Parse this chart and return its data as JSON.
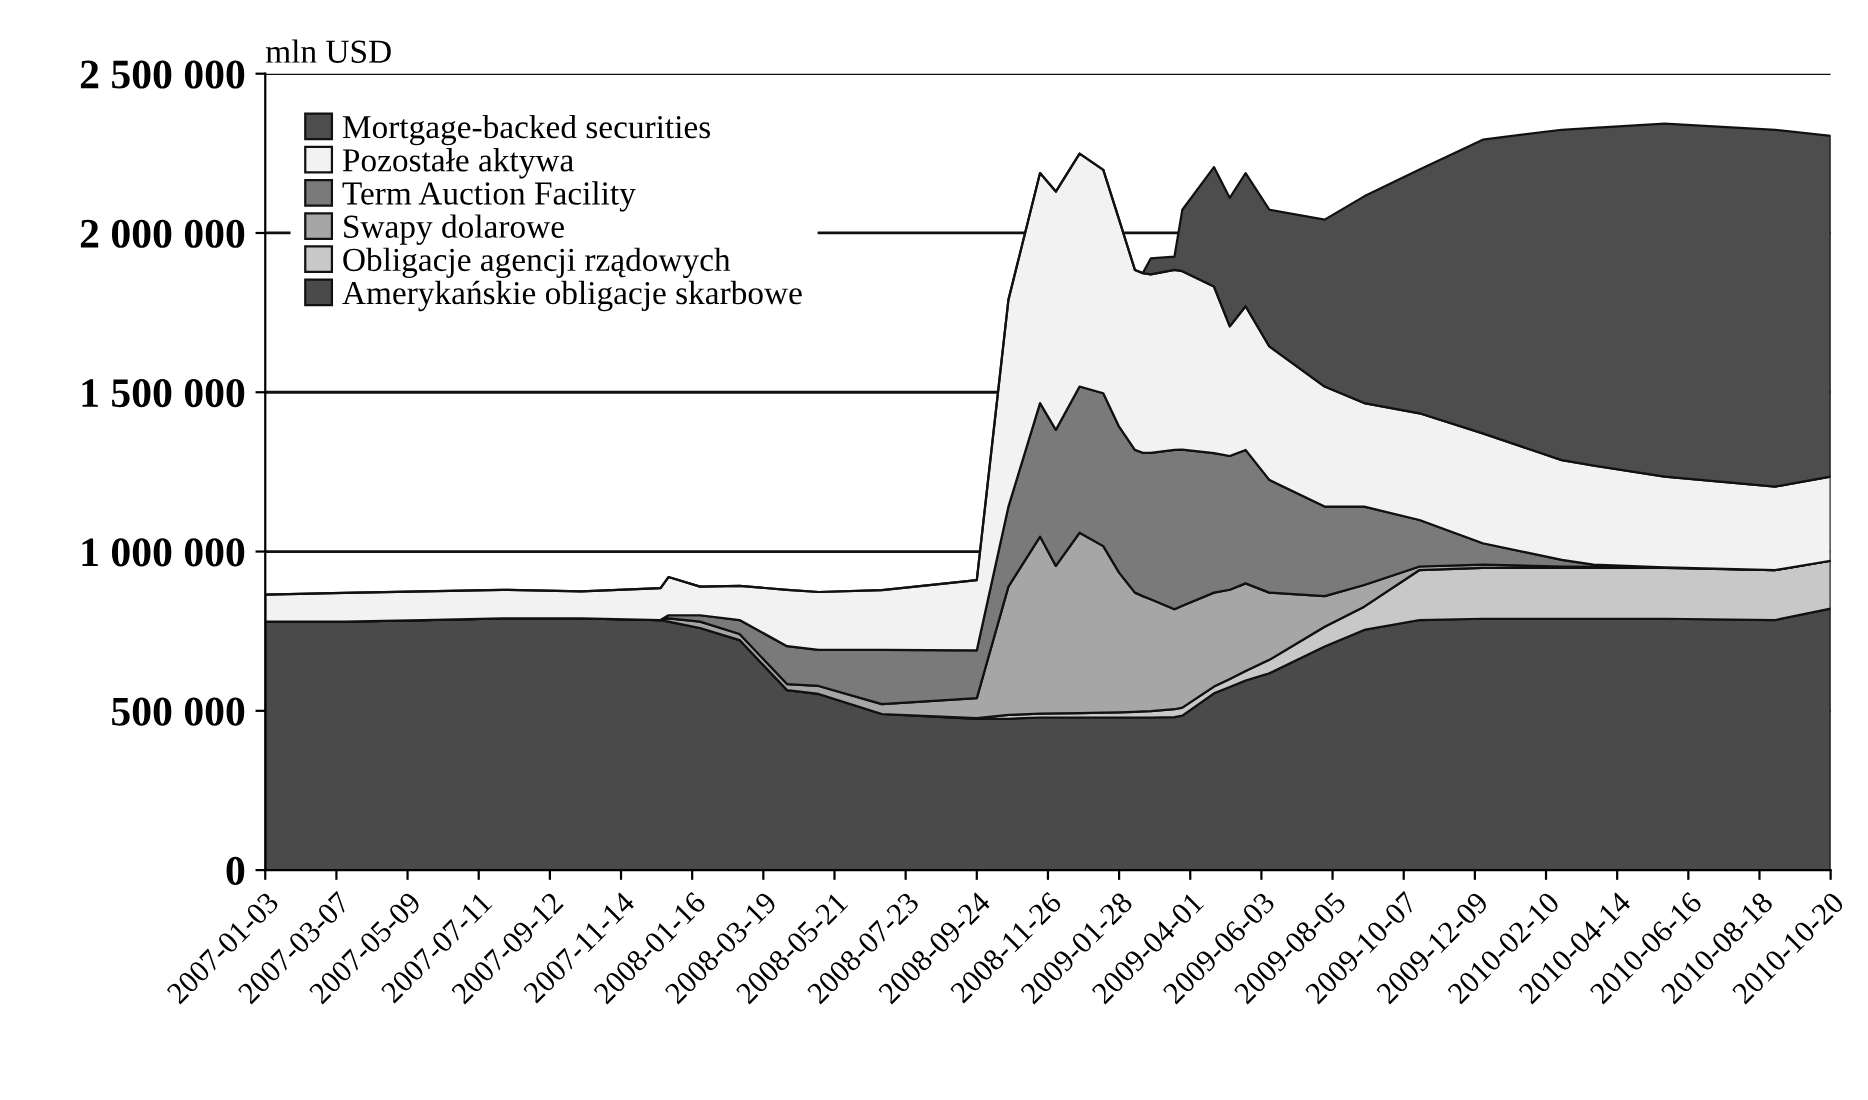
{
  "chart_data": {
    "type": "area",
    "stacked": true,
    "ylabel": "mln USD",
    "x": [
      "2007-01-03",
      "2007-03-14",
      "2007-05-23",
      "2007-08-01",
      "2007-10-10",
      "2007-12-19",
      "2007-12-26",
      "2008-01-23",
      "2008-02-27",
      "2008-04-09",
      "2008-05-07",
      "2008-07-02",
      "2008-09-24",
      "2008-10-22",
      "2008-11-19",
      "2008-12-03",
      "2008-12-24",
      "2009-01-14",
      "2009-01-28",
      "2009-02-11",
      "2009-02-18",
      "2009-02-25",
      "2009-03-18",
      "2009-03-25",
      "2009-04-22",
      "2009-05-06",
      "2009-05-20",
      "2009-06-10",
      "2009-07-29",
      "2009-09-02",
      "2009-10-21",
      "2009-12-16",
      "2010-02-24",
      "2010-03-24",
      "2010-05-26",
      "2010-09-01",
      "2010-10-20"
    ],
    "series": [
      {
        "name": "Amerykańskie obligacje skarbowe",
        "color": "#4a4a4a",
        "values": [
          780000,
          780000,
          785000,
          790000,
          790000,
          785000,
          780000,
          760000,
          722000,
          565000,
          553000,
          490000,
          475000,
          475000,
          479000,
          479000,
          479000,
          479000,
          479000,
          479000,
          479000,
          479000,
          480000,
          485000,
          555000,
          575000,
          595000,
          618000,
          702000,
          754000,
          785000,
          789000,
          789000,
          789000,
          789000,
          785000,
          821000
        ]
      },
      {
        "name": "Obligacje agencji rządowych",
        "color": "#c8c8c8",
        "values": [
          0,
          0,
          0,
          0,
          0,
          0,
          0,
          0,
          0,
          0,
          0,
          0,
          2000,
          12000,
          12000,
          13000,
          14000,
          15000,
          16000,
          18000,
          19000,
          20000,
          25000,
          25000,
          21000,
          25000,
          30000,
          42000,
          62000,
          73000,
          157000,
          160000,
          160000,
          160000,
          160000,
          157000,
          150000
        ]
      },
      {
        "name": "Swapy dolarowe",
        "color": "#a6a6a6",
        "values": [
          0,
          0,
          0,
          0,
          0,
          0,
          10000,
          20000,
          19000,
          19000,
          25000,
          31000,
          63000,
          403000,
          556000,
          463000,
          566000,
          523000,
          439000,
          374000,
          362000,
          351000,
          314000,
          320000,
          295000,
          280000,
          275000,
          211000,
          96000,
          68000,
          11000,
          10000,
          4000,
          3000,
          1000,
          0,
          0
        ]
      },
      {
        "name": "Term Auction Facility",
        "color": "#7a7a7a",
        "values": [
          0,
          0,
          0,
          0,
          0,
          0,
          10000,
          20000,
          44000,
          119000,
          113000,
          170000,
          150000,
          251000,
          419000,
          427000,
          459000,
          480000,
          458000,
          448000,
          450000,
          460000,
          500000,
          490000,
          438000,
          420000,
          419000,
          354000,
          281000,
          246000,
          146000,
          67000,
          21000,
          7000,
          0,
          0,
          0
        ]
      },
      {
        "name": "Pozostałe aktywa",
        "color": "#f2f2f2",
        "values": [
          85000,
          90000,
          90000,
          90000,
          85000,
          100000,
          120000,
          90000,
          107000,
          177000,
          182000,
          188000,
          220000,
          649000,
          722000,
          748000,
          731000,
          701000,
          650000,
          565000,
          564000,
          560000,
          565000,
          560000,
          523000,
          407000,
          451000,
          419000,
          377000,
          325000,
          335000,
          345000,
          313000,
          311000,
          285000,
          262000,
          264000
        ]
      },
      {
        "name": "Mortgage-backed securities",
        "color": "#4d4d4d",
        "values": [
          0,
          0,
          0,
          0,
          0,
          0,
          0,
          0,
          0,
          0,
          0,
          0,
          0,
          0,
          0,
          0,
          0,
          0,
          0,
          0,
          0,
          50000,
          42000,
          193000,
          375000,
          403000,
          418000,
          429000,
          524000,
          649000,
          765000,
          922000,
          1037000,
          1060000,
          1108000,
          1120000,
          1070000
        ]
      }
    ],
    "ylim": [
      0,
      2500000
    ],
    "yticks": [
      {
        "value": 0,
        "label": "0"
      },
      {
        "value": 500000,
        "label": "500 000"
      },
      {
        "value": 1000000,
        "label": "1 000 000"
      },
      {
        "value": 1500000,
        "label": "1 500 000"
      },
      {
        "value": 2000000,
        "label": "2 000 000"
      },
      {
        "value": 2500000,
        "label": "2 500 000"
      }
    ],
    "xlim": [
      "2007-01-03",
      "2010-10-20"
    ],
    "xticks": [
      "2007-01-03",
      "2007-03-07",
      "2007-05-09",
      "2007-07-11",
      "2007-09-12",
      "2007-11-14",
      "2008-01-16",
      "2008-03-19",
      "2008-05-21",
      "2008-07-23",
      "2008-09-24",
      "2008-11-26",
      "2009-01-28",
      "2009-04-01",
      "2009-06-03",
      "2009-08-05",
      "2009-10-07",
      "2009-12-09",
      "2010-02-10",
      "2010-04-14",
      "2010-06-16",
      "2010-08-18",
      "2010-10-20"
    ],
    "grid": "y",
    "legend": "top left"
  }
}
